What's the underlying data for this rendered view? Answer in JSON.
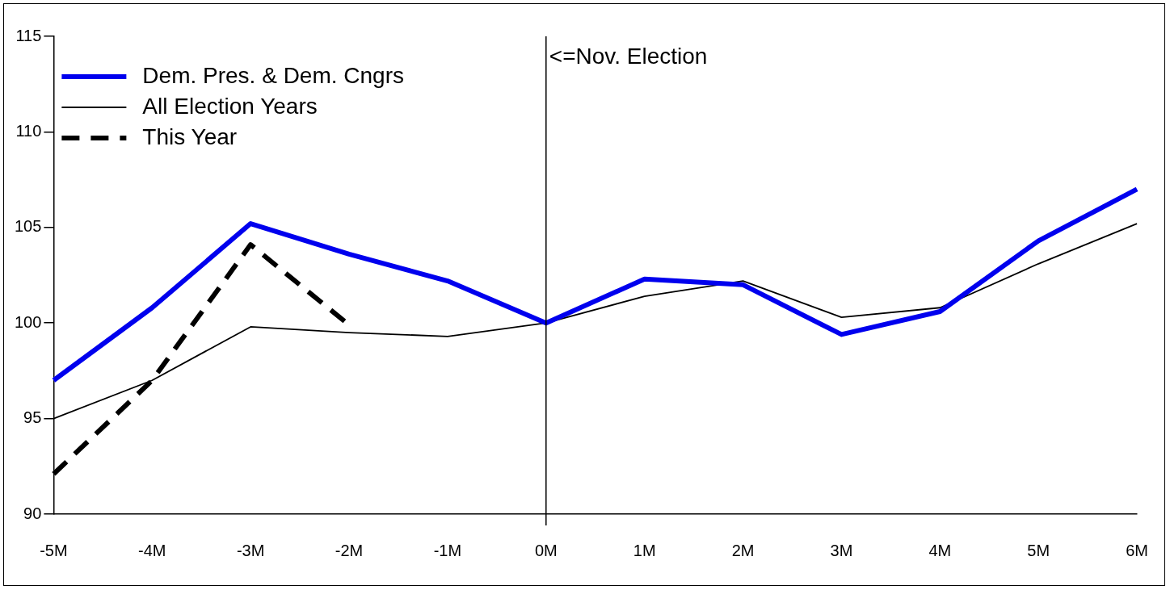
{
  "chart_data": {
    "type": "line",
    "categories": [
      "-5M",
      "-4M",
      "-3M",
      "-2M",
      "-1M",
      "0M",
      "1M",
      "2M",
      "3M",
      "4M",
      "5M",
      "6M"
    ],
    "series": [
      {
        "name": "Dem. Pres. & Dem. Cngrs",
        "color": "#0000ee",
        "values": [
          97.0,
          100.8,
          105.2,
          103.6,
          102.2,
          100.0,
          102.3,
          102.0,
          99.4,
          100.6,
          104.3,
          107.0
        ]
      },
      {
        "name": "All Election Years",
        "color": "#000000",
        "values": [
          95.0,
          97.0,
          99.8,
          99.5,
          99.3,
          100.0,
          101.4,
          102.2,
          100.3,
          100.8,
          103.1,
          105.2
        ]
      },
      {
        "name": "This Year",
        "color": "#000000",
        "line_style": "dashed",
        "values": [
          92.1,
          97.0,
          104.1,
          99.9,
          null,
          null,
          null,
          null,
          null,
          null,
          null,
          null
        ]
      }
    ],
    "ylim": [
      90,
      115
    ],
    "yticks": [
      90,
      95,
      100,
      105,
      110,
      115
    ],
    "ref_lines": [
      {
        "axis": "x",
        "value": "0M",
        "label": "<=Nov. Election",
        "color": "#000000"
      }
    ],
    "grid": false,
    "legend": "top left",
    "marker": "none",
    "line_style": "solid"
  }
}
